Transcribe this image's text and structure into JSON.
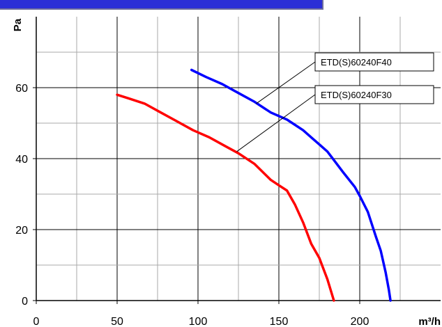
{
  "chart_data": {
    "type": "line",
    "title": "",
    "xlabel": "m³/h",
    "ylabel": "Pa",
    "xlim": [
      0,
      250
    ],
    "ylim": [
      0,
      80
    ],
    "x_ticks": [
      0,
      50,
      100,
      150,
      200
    ],
    "y_ticks": [
      0,
      20,
      40,
      60
    ],
    "grid": true,
    "series": [
      {
        "name": "ETD(S)60240F40",
        "color": "#0000ff",
        "points": [
          [
            96,
            65
          ],
          [
            105,
            63
          ],
          [
            115,
            61
          ],
          [
            125,
            58.5
          ],
          [
            135,
            56
          ],
          [
            145,
            53
          ],
          [
            155,
            51
          ],
          [
            160,
            49.5
          ],
          [
            165,
            48
          ],
          [
            170,
            46
          ],
          [
            175,
            44
          ],
          [
            180,
            42
          ],
          [
            185,
            39
          ],
          [
            190,
            36
          ],
          [
            197,
            32
          ],
          [
            200,
            29.5
          ],
          [
            205,
            25
          ],
          [
            210,
            18
          ],
          [
            213,
            14
          ],
          [
            216,
            8
          ],
          [
            218,
            3
          ],
          [
            219,
            0
          ]
        ]
      },
      {
        "name": "ETD(S)60240F30",
        "color": "#ff0000",
        "points": [
          [
            50,
            58
          ],
          [
            57,
            57
          ],
          [
            67,
            55.5
          ],
          [
            77,
            53
          ],
          [
            87,
            50.5
          ],
          [
            97,
            48
          ],
          [
            107,
            46
          ],
          [
            117,
            43.5
          ],
          [
            125,
            41.5
          ],
          [
            135,
            38.5
          ],
          [
            145,
            34
          ],
          [
            150,
            32.5
          ],
          [
            155,
            31
          ],
          [
            160,
            27
          ],
          [
            165,
            22
          ],
          [
            170,
            16
          ],
          [
            175,
            12
          ],
          [
            180,
            6
          ],
          [
            184,
            0
          ]
        ]
      }
    ]
  }
}
